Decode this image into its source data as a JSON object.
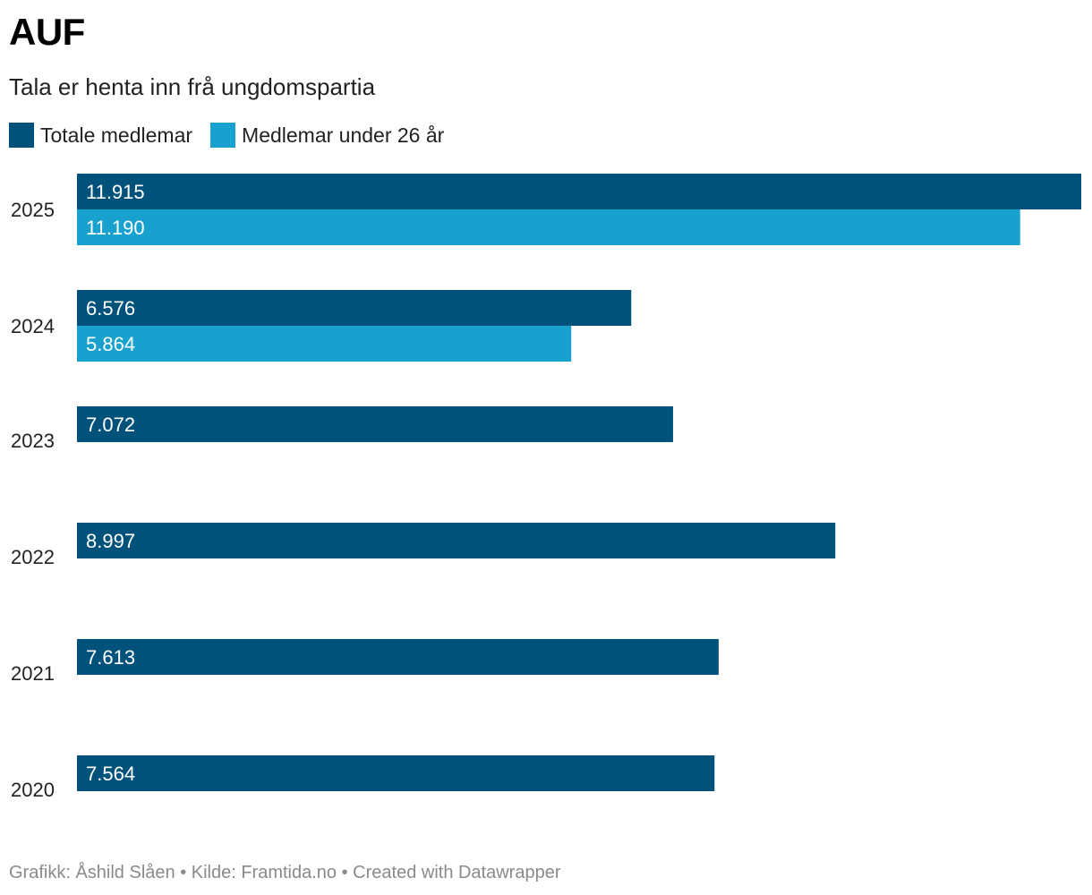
{
  "chart_data": {
    "type": "bar",
    "orientation": "horizontal",
    "title": "AUF",
    "subtitle": "Tala er henta inn frå ungdomspartia",
    "categories": [
      "2025",
      "2024",
      "2023",
      "2022",
      "2021",
      "2020"
    ],
    "series": [
      {
        "name": "Totale medlemar",
        "color": "#00527a",
        "values": [
          11915,
          6576,
          7072,
          8997,
          7613,
          7564
        ],
        "labels": [
          "11.915",
          "6.576",
          "7.072",
          "8.997",
          "7.613",
          "7.564"
        ]
      },
      {
        "name": "Medlemar under 26 år",
        "color": "#18a1cf",
        "values": [
          11190,
          5864,
          null,
          null,
          null,
          null
        ],
        "labels": [
          "11.190",
          "5.864",
          null,
          null,
          null,
          null
        ]
      }
    ],
    "xlim": [
      0,
      11915
    ],
    "grid": false,
    "legend_position": "top-left"
  },
  "footer": "Grafikk: Åshild Slåen • Kilde: Framtida.no • Created with Datawrapper"
}
